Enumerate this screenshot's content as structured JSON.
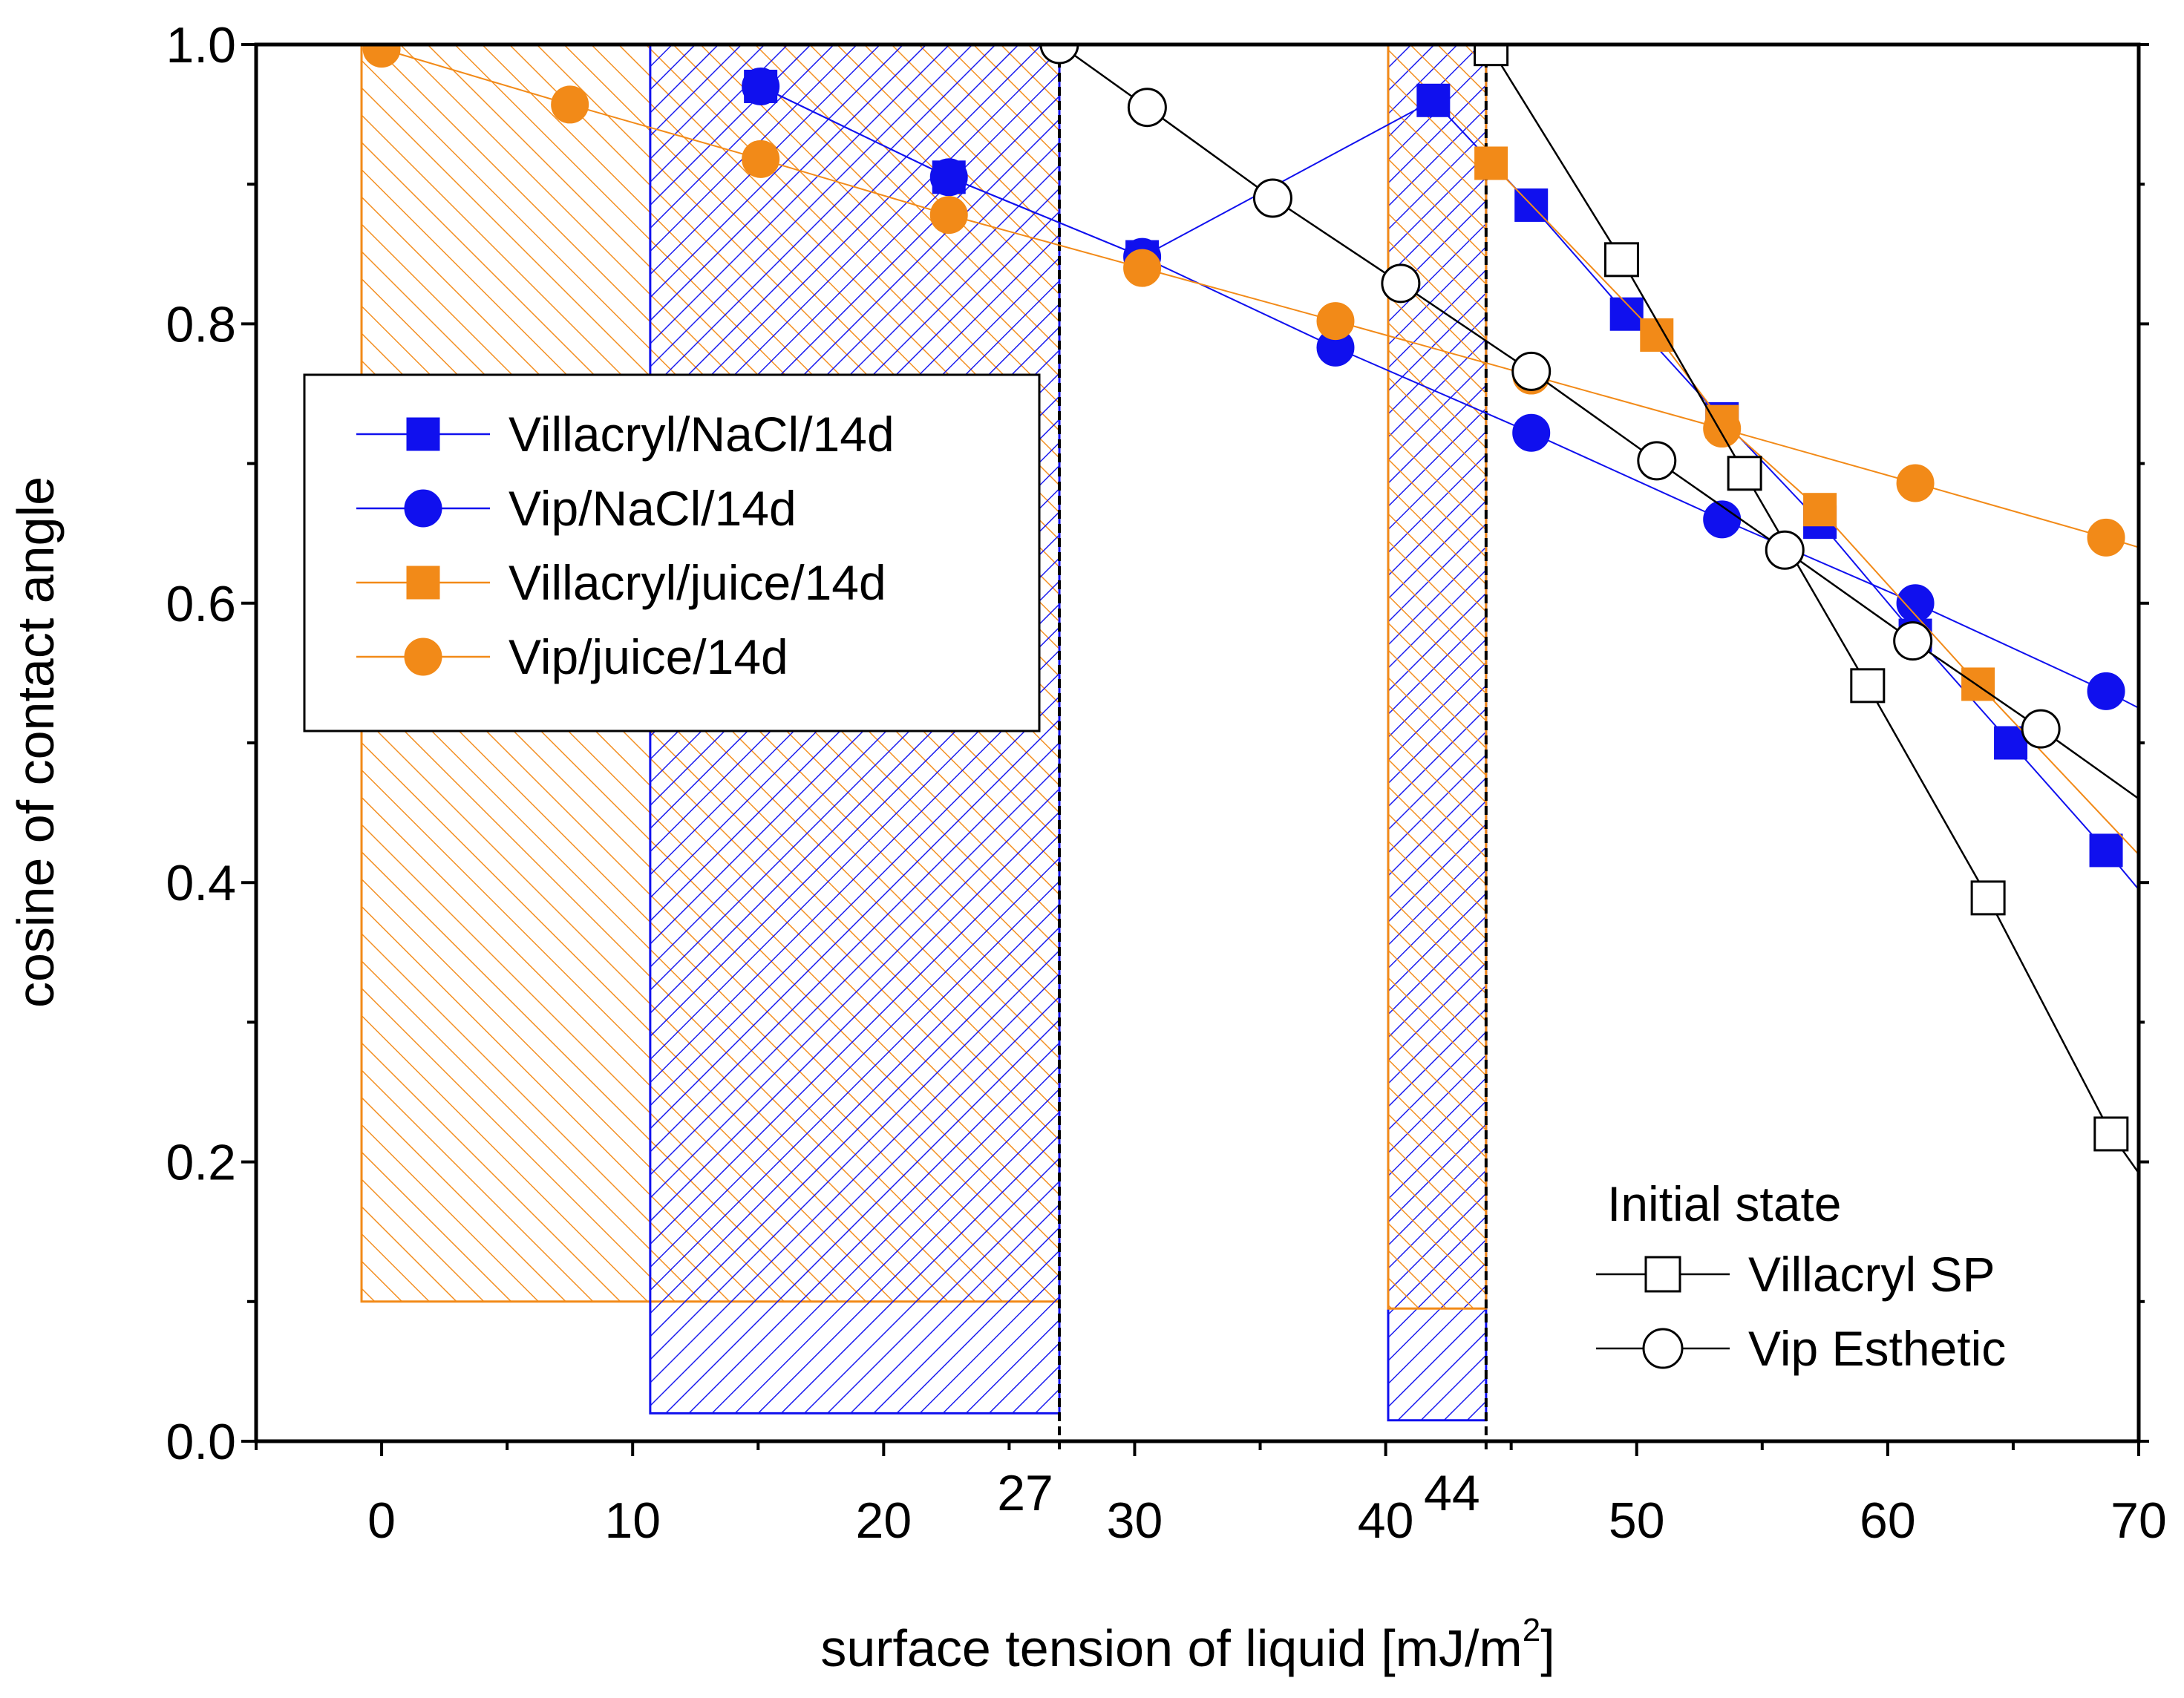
{
  "chart_data": {
    "type": "scatter",
    "title": "",
    "xlabel": "surface tension of liquid [mJ/m",
    "xlabel_sup": "2",
    "xlabel_end": "]",
    "ylabel": "cosine of contact angle",
    "xlim": [
      -5,
      70
    ],
    "ylim": [
      0,
      1
    ],
    "x_ticks": [
      "0",
      "10",
      "20",
      "30",
      "40",
      "50",
      "60",
      "70"
    ],
    "x_tick_values": [
      0,
      10,
      20,
      30,
      40,
      50,
      60,
      70
    ],
    "x_extra_ticks": [
      "27",
      "44"
    ],
    "x_extra_tick_values": [
      27,
      44
    ],
    "y_ticks": [
      "0.0",
      "0.2",
      "0.4",
      "0.6",
      "0.8",
      "1.0"
    ],
    "y_tick_values": [
      0,
      0.2,
      0.4,
      0.6,
      0.8,
      1.0
    ],
    "colors": {
      "blue": "#1010ee",
      "orange": "#f28a18",
      "black": "#000000"
    },
    "series": [
      {
        "name": "Villacryl/NaCl/14d",
        "marker": "square",
        "filled": true,
        "color": "#1010ee",
        "points": [
          [
            15.1,
            0.97
          ],
          [
            22.6,
            0.905
          ],
          [
            30.3,
            0.848
          ],
          [
            41.9,
            0.96
          ],
          [
            45.8,
            0.885
          ],
          [
            49.6,
            0.807
          ],
          [
            53.4,
            0.732
          ],
          [
            57.3,
            0.658
          ],
          [
            61.1,
            0.577
          ],
          [
            64.9,
            0.5
          ],
          [
            68.7,
            0.423
          ],
          [
            70,
            0.395
          ]
        ]
      },
      {
        "name": "Vip/NaCl/14d",
        "marker": "circle",
        "filled": true,
        "color": "#1010ee",
        "points": [
          [
            15.1,
            0.97
          ],
          [
            22.6,
            0.905
          ],
          [
            30.3,
            0.848
          ],
          [
            38.0,
            0.783
          ],
          [
            45.8,
            0.722
          ],
          [
            53.4,
            0.66
          ],
          [
            61.1,
            0.6
          ],
          [
            68.7,
            0.537
          ],
          [
            70,
            0.525
          ]
        ]
      },
      {
        "name": "Villacryl/juice/14d",
        "marker": "square",
        "filled": true,
        "color": "#f28a18",
        "points": [
          [
            44.2,
            0.915
          ],
          [
            50.8,
            0.792
          ],
          [
            53.4,
            0.73
          ],
          [
            57.3,
            0.667
          ],
          [
            63.6,
            0.542
          ],
          [
            70,
            0.42
          ]
        ]
      },
      {
        "name": "Vip/juice/14d",
        "marker": "circle",
        "filled": true,
        "color": "#f28a18",
        "points": [
          [
            0,
            0.997
          ],
          [
            7.5,
            0.957
          ],
          [
            15.1,
            0.918
          ],
          [
            22.6,
            0.878
          ],
          [
            30.3,
            0.84
          ],
          [
            38.0,
            0.802
          ],
          [
            45.8,
            0.763
          ],
          [
            53.4,
            0.725
          ],
          [
            61.1,
            0.686
          ],
          [
            68.7,
            0.647
          ],
          [
            70,
            0.64
          ]
        ]
      },
      {
        "name": "Villacryl SP",
        "marker": "square",
        "filled": false,
        "color": "#000000",
        "points": [
          [
            44.2,
            0.997
          ],
          [
            49.4,
            0.846
          ],
          [
            54.3,
            0.693
          ],
          [
            59.2,
            0.541
          ],
          [
            64.0,
            0.389
          ],
          [
            68.9,
            0.22
          ],
          [
            70,
            0.192
          ]
        ]
      },
      {
        "name": "Vip Esthetic",
        "marker": "circle",
        "filled": false,
        "color": "#000000",
        "points": [
          [
            27,
            1.0
          ],
          [
            30.5,
            0.955
          ],
          [
            35.5,
            0.89
          ],
          [
            40.6,
            0.829
          ],
          [
            45.8,
            0.766
          ],
          [
            50.8,
            0.702
          ],
          [
            55.9,
            0.638
          ],
          [
            61.0,
            0.573
          ],
          [
            66.1,
            0.51
          ],
          [
            70,
            0.46
          ]
        ]
      }
    ],
    "shaded_regions": [
      {
        "name": "orange-region-a",
        "x": [
          -0.8,
          27
        ],
        "y": [
          0.1,
          1.0
        ],
        "color": "#f28a18",
        "hatch": "diagonal"
      },
      {
        "name": "blue-region-a",
        "x": [
          10.7,
          27
        ],
        "y": [
          0.02,
          1.0
        ],
        "color": "#1010ee",
        "hatch": "back-diagonal"
      },
      {
        "name": "blue-region-b",
        "x": [
          40.1,
          44
        ],
        "y": [
          0.015,
          1.0
        ],
        "color": "#1010ee",
        "hatch": "back-diagonal"
      },
      {
        "name": "orange-region-b",
        "x": [
          40.1,
          44
        ],
        "y": [
          0.095,
          1.0
        ],
        "color": "#f28a18",
        "hatch": "diagonal"
      }
    ],
    "reference_lines": [
      27,
      44
    ],
    "legend_main": {
      "placement": "upper-left",
      "entries": [
        "Villacryl/NaCl/14d",
        "Vip/NaCl/14d",
        "Villacryl/juice/14d",
        "Vip/juice/14d"
      ]
    },
    "legend_initial": {
      "placement": "lower-right",
      "title": "Initial state",
      "entries": [
        "Villacryl SP",
        "Vip Esthetic"
      ]
    }
  }
}
